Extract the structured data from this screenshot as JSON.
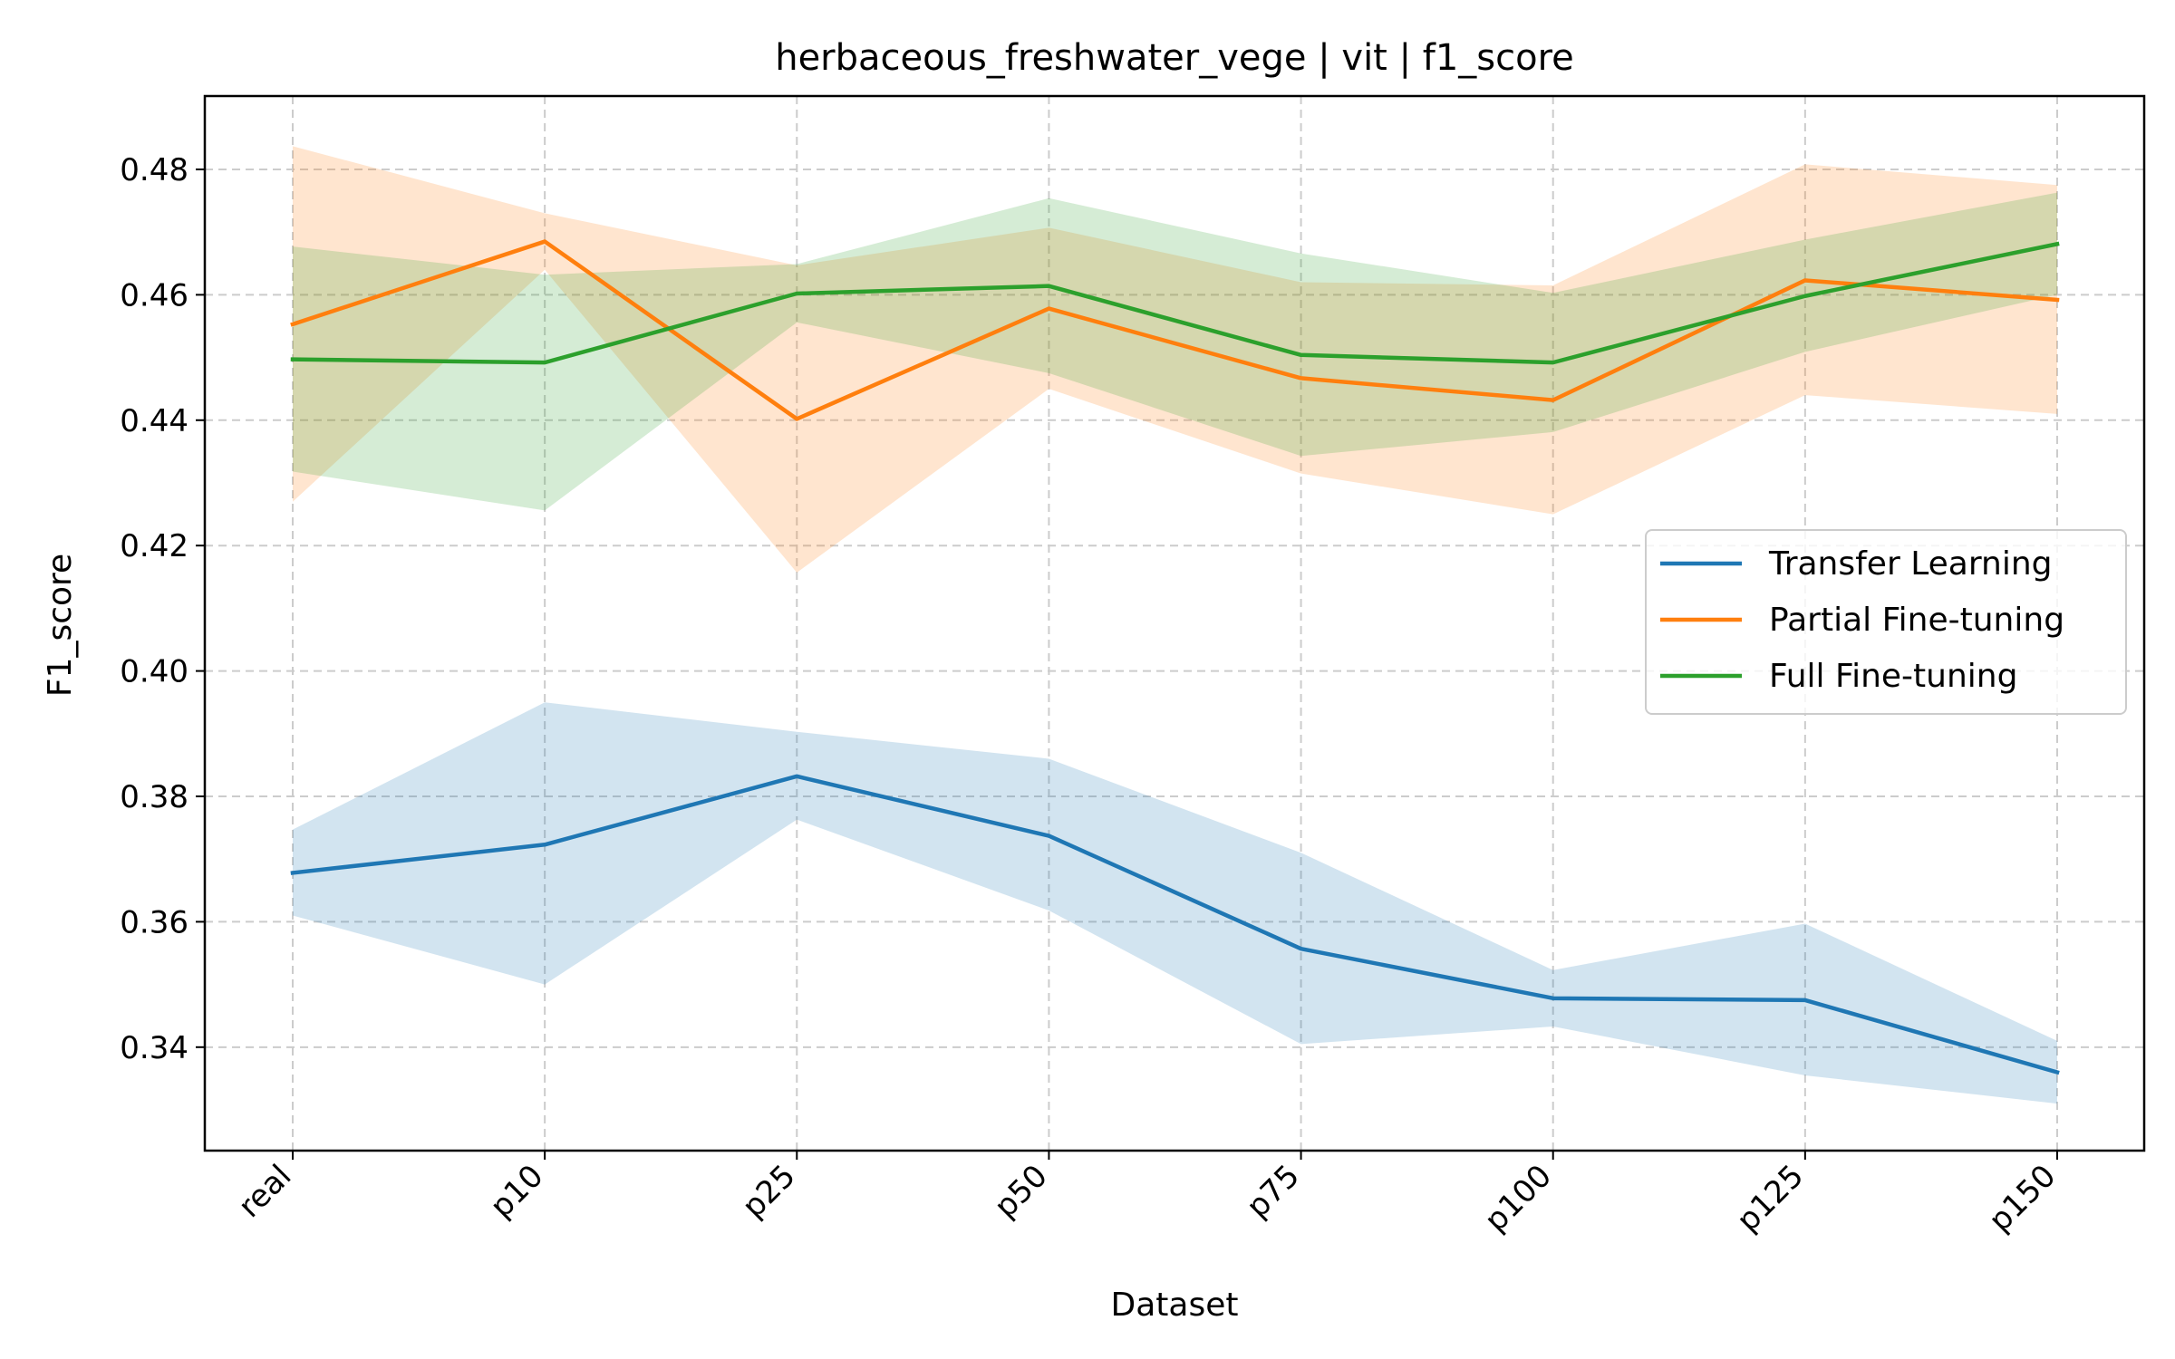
{
  "chart_data": {
    "type": "line",
    "title": "herbaceous_freshwater_vege | vit | f1_score",
    "xlabel": "Dataset",
    "ylabel": "F1_score",
    "categories": [
      "real",
      "p10",
      "p25",
      "p50",
      "p75",
      "p100",
      "p125",
      "p150"
    ],
    "ylim": [
      0.3235,
      0.4917
    ],
    "yticks": [
      0.34,
      0.36,
      0.38,
      0.4,
      0.42,
      0.44,
      0.46,
      0.48
    ],
    "ytick_labels": [
      "0.34",
      "0.36",
      "0.38",
      "0.40",
      "0.42",
      "0.44",
      "0.46",
      "0.48"
    ],
    "grid": true,
    "legend_position": "center-right",
    "series": [
      {
        "name": "Transfer Learning",
        "color": "#1f77b4",
        "values": [
          0.3678,
          0.3723,
          0.3832,
          0.3737,
          0.3557,
          0.3478,
          0.3475,
          0.336
        ],
        "lower": [
          0.361,
          0.35,
          0.3763,
          0.3618,
          0.3405,
          0.3433,
          0.3355,
          0.331
        ],
        "upper": [
          0.3747,
          0.395,
          0.3903,
          0.386,
          0.371,
          0.3523,
          0.3597,
          0.341
        ]
      },
      {
        "name": "Partial Fine-tuning",
        "color": "#ff7f0e",
        "values": [
          0.4553,
          0.4685,
          0.4402,
          0.4578,
          0.4467,
          0.4432,
          0.4623,
          0.4592
        ],
        "lower": [
          0.427,
          0.464,
          0.4157,
          0.445,
          0.4315,
          0.425,
          0.444,
          0.441
        ],
        "upper": [
          0.4837,
          0.473,
          0.4647,
          0.4707,
          0.462,
          0.4615,
          0.4808,
          0.4775
        ]
      },
      {
        "name": "Full Fine-tuning",
        "color": "#2ca02c",
        "values": [
          0.4497,
          0.4492,
          0.4602,
          0.4614,
          0.4504,
          0.4492,
          0.4598,
          0.4681
        ],
        "lower": [
          0.4318,
          0.4256,
          0.4556,
          0.4475,
          0.4343,
          0.4381,
          0.4509,
          0.46
        ],
        "upper": [
          0.4677,
          0.4632,
          0.4649,
          0.4754,
          0.4666,
          0.4603,
          0.4688,
          0.4763
        ]
      }
    ]
  }
}
